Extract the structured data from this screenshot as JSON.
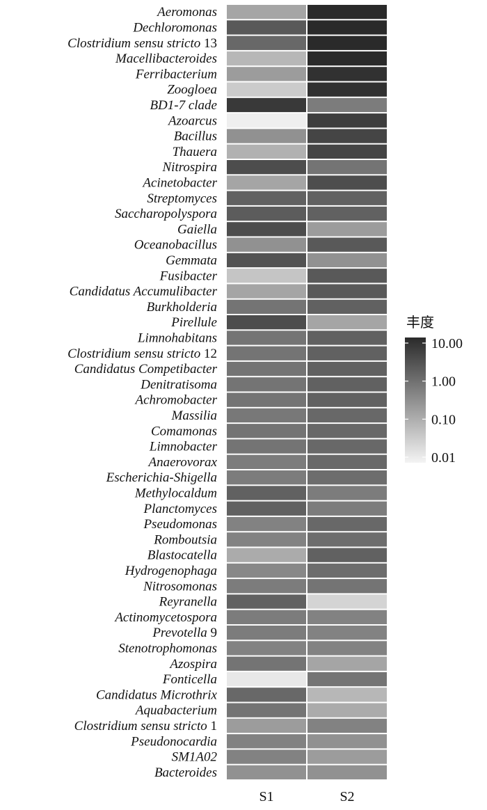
{
  "chart_data": {
    "type": "heatmap",
    "columns": [
      "S1",
      "S2"
    ],
    "rows": [
      {
        "label": "Aeromonas",
        "values": [
          0.15,
          12.0
        ]
      },
      {
        "label": "Dechloromonas",
        "values": [
          2.0,
          11.0
        ]
      },
      {
        "label": "Clostridium sensu stricto 13",
        "values": [
          1.2,
          11.0
        ]
      },
      {
        "label": "Macellibacteroides",
        "values": [
          0.08,
          10.0
        ]
      },
      {
        "label": "Ferribacterium",
        "values": [
          0.2,
          8.0
        ]
      },
      {
        "label": "Zoogloea",
        "values": [
          0.04,
          8.0
        ]
      },
      {
        "label": "BD1-7 clade",
        "values": [
          6.0,
          0.6
        ]
      },
      {
        "label": "Azoarcus",
        "values": [
          0.012,
          5.0
        ]
      },
      {
        "label": "Bacillus",
        "values": [
          0.3,
          4.0
        ]
      },
      {
        "label": "Thauera",
        "values": [
          0.1,
          4.0
        ]
      },
      {
        "label": "Nitrospira",
        "values": [
          3.0,
          0.8
        ]
      },
      {
        "label": "Acinetobacter",
        "values": [
          0.15,
          3.0
        ]
      },
      {
        "label": "Streptomyces",
        "values": [
          1.5,
          1.5
        ]
      },
      {
        "label": "Saccharopolyspora",
        "values": [
          1.8,
          1.5
        ]
      },
      {
        "label": "Gaiella",
        "values": [
          3.0,
          0.2
        ]
      },
      {
        "label": "Oceanobacillus",
        "values": [
          0.3,
          2.0
        ]
      },
      {
        "label": "Gemmata",
        "values": [
          2.5,
          0.3
        ]
      },
      {
        "label": "Fusibacter",
        "values": [
          0.05,
          2.0
        ]
      },
      {
        "label": "Candidatus Accumulibacter",
        "values": [
          0.15,
          2.0
        ]
      },
      {
        "label": "Burkholderia",
        "values": [
          0.8,
          1.5
        ]
      },
      {
        "label": "Pirellule",
        "values": [
          3.0,
          0.15
        ]
      },
      {
        "label": "Limnohabitans",
        "values": [
          0.8,
          1.5
        ]
      },
      {
        "label": "Clostridium sensu stricto 12",
        "values": [
          0.8,
          1.5
        ]
      },
      {
        "label": "Candidatus Competibacter",
        "values": [
          0.8,
          1.5
        ]
      },
      {
        "label": "Denitratisoma",
        "values": [
          0.8,
          1.5
        ]
      },
      {
        "label": "Achromobacter",
        "values": [
          0.8,
          1.5
        ]
      },
      {
        "label": "Massilia",
        "values": [
          0.7,
          1.2
        ]
      },
      {
        "label": "Comamonas",
        "values": [
          0.8,
          1.2
        ]
      },
      {
        "label": "Limnobacter",
        "values": [
          0.8,
          1.2
        ]
      },
      {
        "label": "Anaerovorax",
        "values": [
          0.6,
          1.2
        ]
      },
      {
        "label": "Escherichia-Shigella",
        "values": [
          0.6,
          1.0
        ]
      },
      {
        "label": "Methylocaldum",
        "values": [
          1.5,
          0.6
        ]
      },
      {
        "label": "Planctomyces",
        "values": [
          1.5,
          0.6
        ]
      },
      {
        "label": "Pseudomonas",
        "values": [
          0.5,
          1.2
        ]
      },
      {
        "label": "Romboutsia",
        "values": [
          0.5,
          1.0
        ]
      },
      {
        "label": "Blastocatella",
        "values": [
          0.12,
          1.5
        ]
      },
      {
        "label": "Hydrogenophaga",
        "values": [
          0.4,
          1.0
        ]
      },
      {
        "label": "Nitrosomonas",
        "values": [
          0.6,
          0.8
        ]
      },
      {
        "label": "Reyranella",
        "values": [
          1.5,
          0.03
        ]
      },
      {
        "label": "Actinomycetospora",
        "values": [
          0.6,
          0.5
        ]
      },
      {
        "label": "Prevotella 9",
        "values": [
          0.6,
          0.5
        ]
      },
      {
        "label": "Stenotrophomonas",
        "values": [
          0.5,
          0.5
        ]
      },
      {
        "label": "Azospira",
        "values": [
          0.8,
          0.15
        ]
      },
      {
        "label": "Fonticella",
        "values": [
          0.015,
          0.8
        ]
      },
      {
        "label": "Candidatus Microthrix",
        "values": [
          1.2,
          0.08
        ]
      },
      {
        "label": "Aquabacterium",
        "values": [
          0.8,
          0.12
        ]
      },
      {
        "label": "Clostridium sensu stricto 1",
        "values": [
          0.2,
          0.5
        ]
      },
      {
        "label": "Pseudonocardia",
        "values": [
          0.5,
          0.3
        ]
      },
      {
        "label": "SM1A02",
        "values": [
          0.5,
          0.2
        ]
      },
      {
        "label": "Bacteroides",
        "values": [
          0.3,
          0.3
        ]
      }
    ],
    "legend": {
      "title": "丰度",
      "ticks": [
        10.0,
        1.0,
        0.1,
        0.01
      ],
      "tick_labels": [
        "10.00",
        "1.00",
        "0.10",
        "0.01"
      ],
      "scale": "log",
      "placement": "right",
      "color_low": "#f4f4f4",
      "color_high": "#2a2a2a"
    }
  }
}
